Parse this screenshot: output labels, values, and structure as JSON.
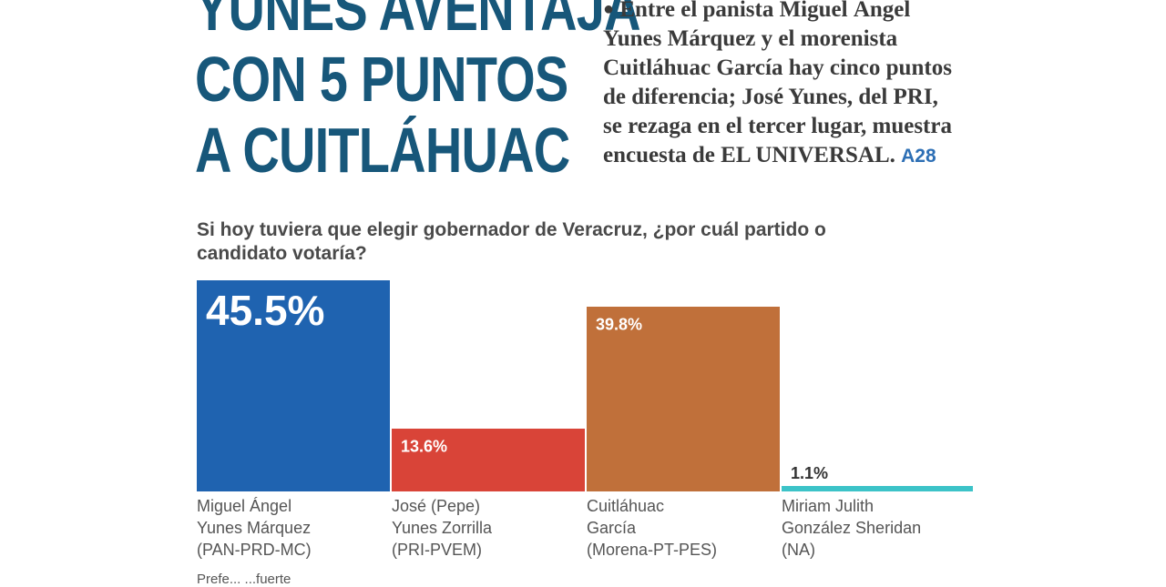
{
  "headline": {
    "lines": [
      "YUNES AVENTAJA",
      "CON 5 PUNTOS",
      "A CUITLÁHUAC"
    ]
  },
  "summary": {
    "text": "Entre el panista Miguel Ángel Yunes Márquez y el morenista Cuitláhuac García hay cinco puntos de diferencia; José Yunes, del PRI, se rezaga en el tercer lugar, muestra encuesta de EL UNIVERSAL.",
    "page_ref": "A28"
  },
  "colors": {
    "headline": "#17577a",
    "accent_link": "#2d6fb5"
  },
  "chart_data": {
    "type": "bar",
    "title": "Si hoy tuviera que elegir gobernador de Veracruz, ¿por cuál partido o candidato votaría?",
    "categories": [
      "Miguel Ángel Yunes Márquez (PAN-PRD-MC)",
      "José (Pepe) Yunes Zorrilla (PRI-PVEM)",
      "Cuitláhuac García (Morena-PT-PES)",
      "Miriam Julith González Sheridan (NA)"
    ],
    "category_lines": [
      [
        "Miguel Ángel",
        "Yunes Márquez",
        "(PAN-PRD-MC)"
      ],
      [
        "José (Pepe)",
        "Yunes Zorrilla",
        "(PRI-PVEM)"
      ],
      [
        "Cuitláhuac",
        "García",
        "(Morena-PT-PES)"
      ],
      [
        "Miriam Julith",
        "González Sheridan",
        "(NA)"
      ]
    ],
    "values": [
      45.5,
      13.6,
      39.8,
      1.1
    ],
    "value_labels": [
      "45.5%",
      "13.6%",
      "39.8%",
      "1.1%"
    ],
    "colors": [
      "#1f63b0",
      "#d94438",
      "#c0703a",
      "#3cc3c8"
    ],
    "ylim": [
      0,
      45.5
    ],
    "grid": false,
    "legend": "none"
  },
  "footer": {
    "text": "Prefe... ...fuerte"
  }
}
